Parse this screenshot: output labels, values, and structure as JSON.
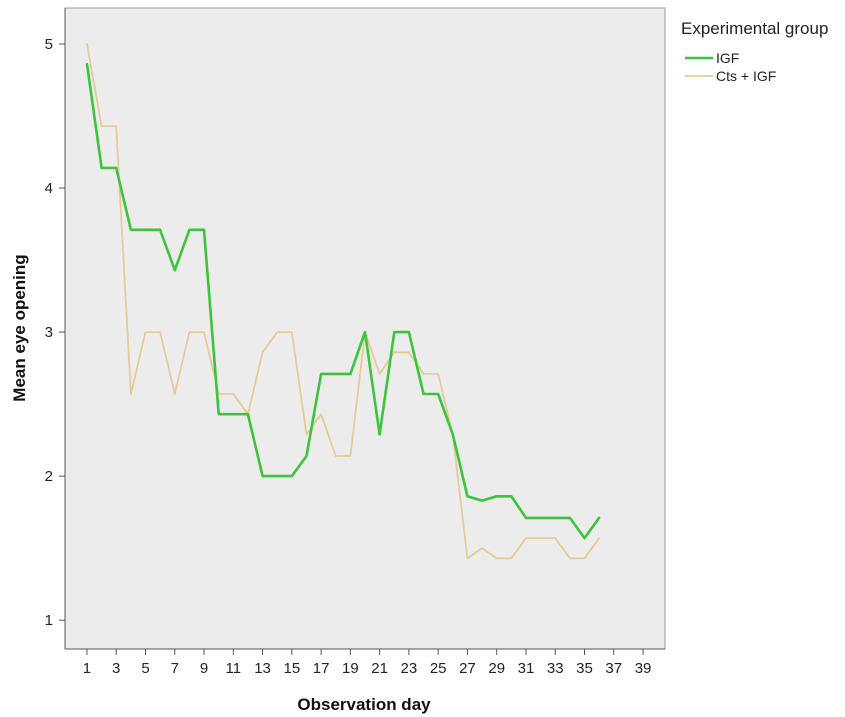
{
  "chart_data": {
    "type": "line",
    "xlabel": "Observation day",
    "ylabel": "Mean eye opening",
    "xlim": [
      -0.5,
      40.5
    ],
    "ylim": [
      0.8,
      5.25
    ],
    "x_ticks": [
      1,
      3,
      5,
      7,
      9,
      11,
      13,
      15,
      17,
      19,
      21,
      23,
      25,
      27,
      29,
      31,
      33,
      35,
      37,
      39
    ],
    "y_ticks": [
      1,
      2,
      3,
      4,
      5
    ],
    "grid": false,
    "legend": {
      "title": "Experimental group",
      "placement": "top-right, outside plot"
    },
    "plot_background": "#ececec",
    "series": [
      {
        "name": "IGF",
        "color": "#3cc43c",
        "x": [
          1,
          2,
          3,
          4,
          5,
          6,
          7,
          8,
          9,
          10,
          11,
          12,
          13,
          14,
          15,
          16,
          17,
          18,
          19,
          20,
          21,
          22,
          23,
          24,
          25,
          26,
          27,
          28,
          29,
          30,
          31,
          32,
          33,
          34,
          35,
          36
        ],
        "values": [
          4.86,
          4.14,
          4.14,
          3.71,
          3.71,
          3.71,
          3.43,
          3.71,
          3.71,
          2.43,
          2.43,
          2.43,
          2.0,
          2.0,
          2.0,
          2.14,
          2.71,
          2.71,
          2.71,
          3.0,
          2.29,
          3.0,
          3.0,
          2.57,
          2.57,
          2.29,
          1.86,
          1.83,
          1.86,
          1.86,
          1.71,
          1.71,
          1.71,
          1.71,
          1.57,
          1.71
        ]
      },
      {
        "name": "Cts + IGF",
        "color": "#e3cb98",
        "x": [
          1,
          2,
          3,
          4,
          5,
          6,
          7,
          8,
          9,
          10,
          11,
          12,
          13,
          14,
          15,
          16,
          17,
          18,
          19,
          20,
          21,
          22,
          23,
          24,
          25,
          26,
          27,
          28,
          29,
          30,
          31,
          32,
          33,
          34,
          35,
          36
        ],
        "values": [
          5.0,
          4.43,
          4.43,
          2.57,
          3.0,
          3.0,
          2.57,
          3.0,
          3.0,
          2.57,
          2.57,
          2.43,
          2.86,
          3.0,
          3.0,
          2.29,
          2.43,
          2.14,
          2.14,
          3.0,
          2.71,
          2.86,
          2.86,
          2.71,
          2.71,
          2.29,
          1.43,
          1.5,
          1.43,
          1.43,
          1.57,
          1.57,
          1.57,
          1.43,
          1.43,
          1.57
        ]
      }
    ]
  }
}
